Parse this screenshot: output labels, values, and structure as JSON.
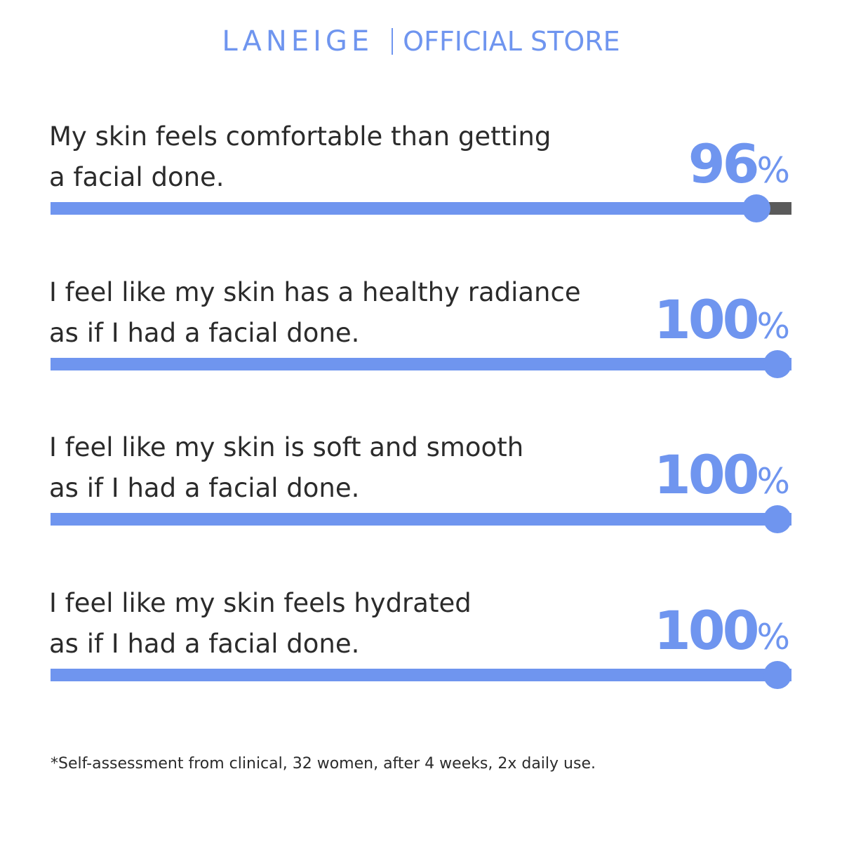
{
  "header": {
    "brand": "LANEIGE",
    "store": "OFFICIAL STORE",
    "accent_color": "#6f95ef"
  },
  "chart_data": {
    "type": "bar",
    "orientation": "horizontal",
    "ylim": [
      0,
      100
    ],
    "items": [
      {
        "label_lines": [
          "My skin feels comfortable than getting",
          "a facial done."
        ],
        "value": 96,
        "value_text": "96",
        "unit": "%"
      },
      {
        "label_lines": [
          "I feel like my skin has a healthy radiance",
          "as if I had a facial done."
        ],
        "value": 100,
        "value_text": "100",
        "unit": "%"
      },
      {
        "label_lines": [
          "I feel like my skin is soft and smooth",
          "as if I had a facial done."
        ],
        "value": 100,
        "value_text": "100",
        "unit": "%"
      },
      {
        "label_lines": [
          "I feel like my skin feels hydrated",
          "as if I had a facial done."
        ],
        "value": 100,
        "value_text": "100",
        "unit": "%"
      }
    ],
    "colors": {
      "fill": "#6f95ef",
      "track": "#5a5a5a"
    }
  },
  "footnote": "*Self-assessment from clinical, 32 women, after 4 weeks, 2x daily use."
}
